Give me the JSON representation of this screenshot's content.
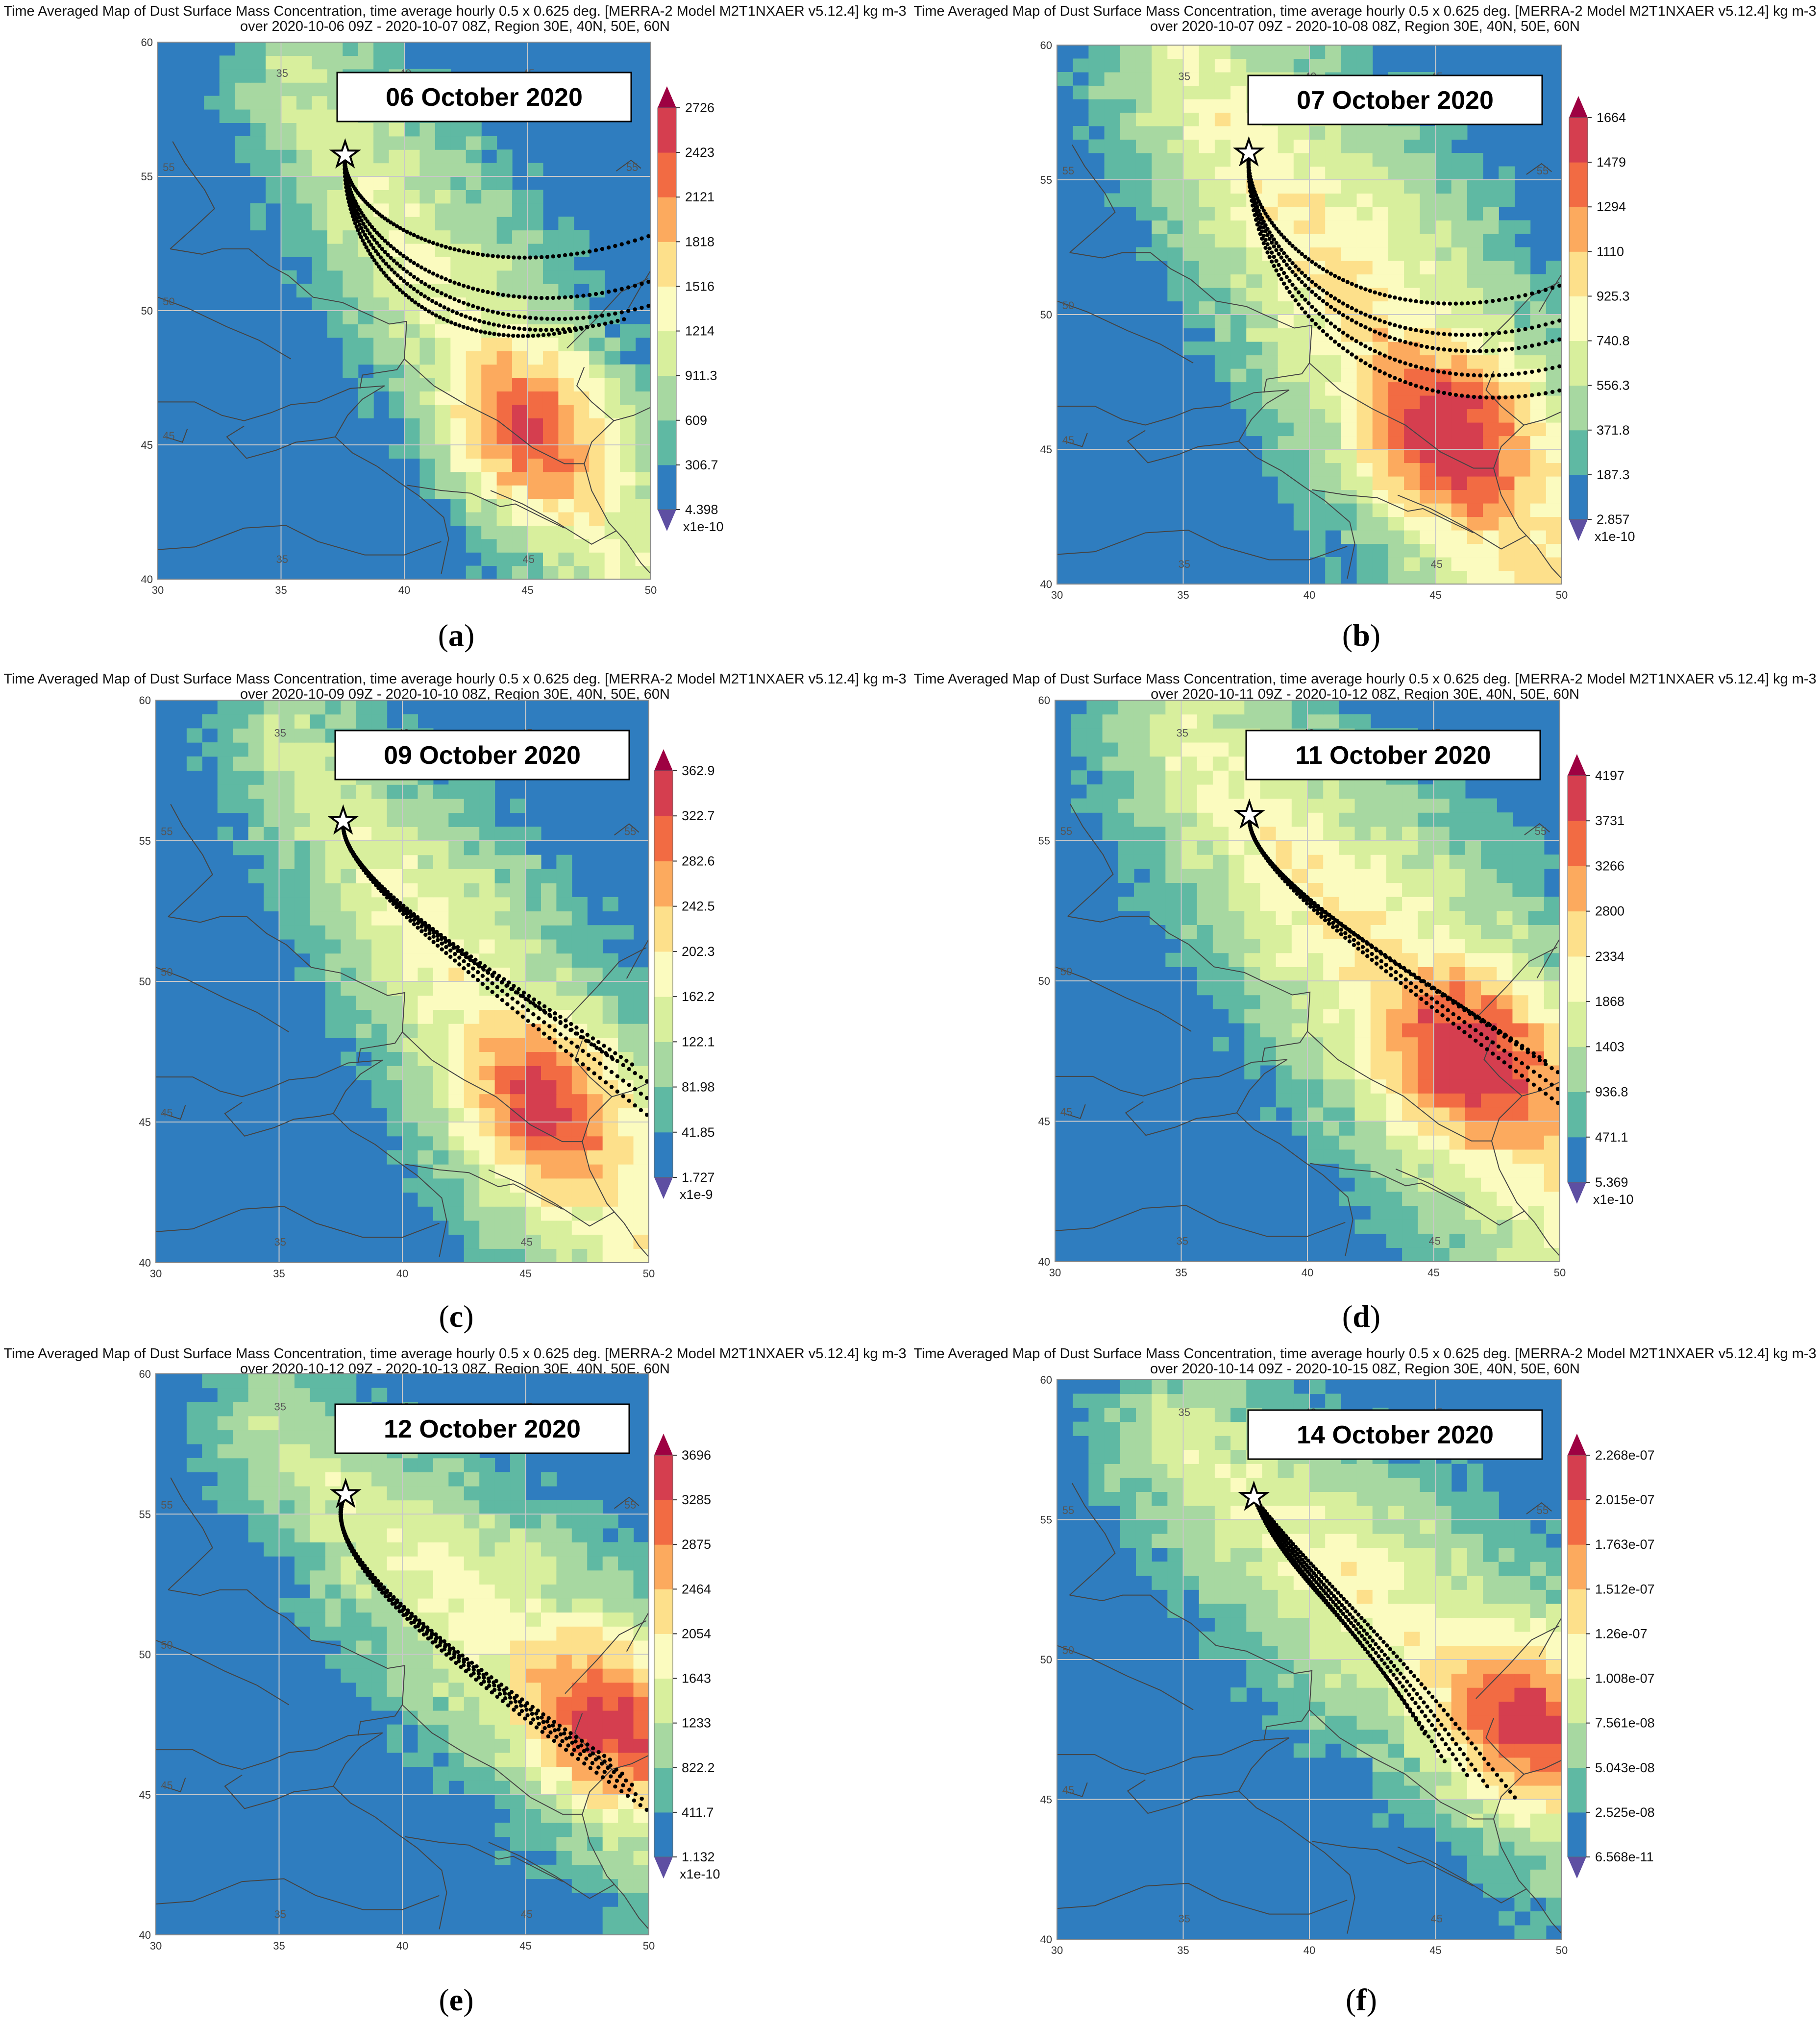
{
  "colors": {
    "c0": "#2f7dbf",
    "c1": "#5fb9a3",
    "c2": "#a7d8a1",
    "c3": "#d8ef9d",
    "c4": "#fbfbbf",
    "c5": "#fde08b",
    "c6": "#fcaa5e",
    "c7": "#f26b43",
    "c8": "#d53e4f",
    "cTopArrow": "#9e0142",
    "cBotArrow": "#5e4fa2",
    "grid": "#c8c8c8",
    "coast": "#444444",
    "traj": "#000000"
  },
  "axes": {
    "lon_range": [
      30,
      50
    ],
    "lat_range": [
      40,
      60
    ],
    "lon_ticks": [
      "30",
      "35",
      "40",
      "45",
      "50"
    ],
    "lat_ticks": [
      "40",
      "45",
      "50",
      "55",
      "60"
    ]
  },
  "panels": [
    {
      "title": "Time Averaged Map of Dust Surface Mass Concentration, time average hourly 0.5 x 0.625 deg. [MERRA-2 Model M2T1NXAER v5.12.4] kg m-3\nover 2020-10-06 09Z - 2020-10-07 08Z, Region 30E, 40N, 50E, 60N",
      "date_label": "06 October 2020",
      "caption": "a",
      "colorbar_labels": [
        "2726",
        "2423",
        "2121",
        "1818",
        "1516",
        "1214",
        "911.3",
        "609",
        "306.7",
        "4.398"
      ],
      "colorbar_unit": "x1e-10",
      "star": [
        37.6,
        55.8
      ],
      "hotspot": [
        45.2,
        45.6
      ],
      "trajectory_ends": [
        [
          47.5,
          49.4
        ],
        [
          49.0,
          49.7
        ],
        [
          50.0,
          50.2
        ],
        [
          50.0,
          51.1
        ],
        [
          50.0,
          52.8
        ]
      ]
    },
    {
      "title": "Time Averaged Map of Dust Surface Mass Concentration, time average hourly 0.5 x 0.625 deg. [MERRA-2 Model M2T1NXAER v5.12.4] kg m-3\nover 2020-10-07 09Z - 2020-10-08 08Z, Region 30E, 40N, 50E, 60N",
      "date_label": "07 October 2020",
      "caption": "b",
      "colorbar_labels": [
        "1664",
        "1479",
        "1294",
        "1110",
        "925.3",
        "740.8",
        "556.3",
        "371.8",
        "187.3",
        "2.857"
      ],
      "colorbar_unit": "x1e-10",
      "star": [
        37.6,
        56.0
      ],
      "hotspot": [
        45.6,
        45.5
      ],
      "trajectory_ends": [
        [
          50.0,
          47.2
        ],
        [
          50.0,
          48.1
        ],
        [
          50.0,
          49.1
        ],
        [
          50.0,
          49.8
        ],
        [
          50.0,
          51.1
        ]
      ]
    },
    {
      "title": "Time Averaged Map of Dust Surface Mass Concentration, time average hourly 0.5 x 0.625 deg. [MERRA-2 Model M2T1NXAER v5.12.4] kg m-3\nover 2020-10-09 09Z - 2020-10-10 08Z, Region 30E, 40N, 50E, 60N",
      "date_label": "09 October 2020",
      "caption": "c",
      "colorbar_labels": [
        "362.9",
        "322.7",
        "282.6",
        "242.5",
        "202.3",
        "162.2",
        "122.1",
        "81.98",
        "41.85",
        "1.727"
      ],
      "colorbar_unit": "x1e-9",
      "star": [
        37.6,
        55.7
      ],
      "hotspot": [
        45.8,
        45.6
      ],
      "trajectory_ends": [
        [
          50.0,
          45.2
        ],
        [
          50.0,
          45.8
        ],
        [
          50.0,
          46.4
        ],
        [
          49.4,
          47.0
        ],
        [
          48.6,
          47.2
        ]
      ]
    },
    {
      "title": "Time Averaged Map of Dust Surface Mass Concentration, time average hourly 0.5 x 0.625 deg. [MERRA-2 Model M2T1NXAER v5.12.4] kg m-3\nover 2020-10-11 09Z - 2020-10-12 08Z, Region 30E, 40N, 50E, 60N",
      "date_label": "11 October 2020",
      "caption": "d",
      "colorbar_labels": [
        "4197",
        "3731",
        "3266",
        "2800",
        "2334",
        "1868",
        "1403",
        "936.8",
        "471.1",
        "5.369"
      ],
      "colorbar_unit": "x1e-10",
      "star": [
        37.7,
        55.9
      ],
      "hotspot": [
        46.5,
        47.2
      ],
      "trajectory_ends": [
        [
          50.0,
          45.6
        ],
        [
          50.0,
          46.1
        ],
        [
          50.0,
          46.7
        ],
        [
          49.5,
          47.1
        ],
        [
          48.8,
          47.5
        ]
      ]
    },
    {
      "title": "Time Averaged Map of Dust Surface Mass Concentration, time average hourly 0.5 x 0.625 deg. [MERRA-2 Model M2T1NXAER v5.12.4] kg m-3\nover 2020-10-12 09Z - 2020-10-13 08Z, Region 30E, 40N, 50E, 60N",
      "date_label": "12 October 2020",
      "caption": "e",
      "colorbar_labels": [
        "3696",
        "3285",
        "2875",
        "2464",
        "2054",
        "1643",
        "1233",
        "822.2",
        "411.7",
        "1.132"
      ],
      "colorbar_unit": "x1e-10",
      "star": [
        37.7,
        55.7
      ],
      "hotspot": [
        48.4,
        47.6
      ],
      "trajectory_ends": [
        [
          50.0,
          44.4
        ],
        [
          49.8,
          44.8
        ],
        [
          49.4,
          45.3
        ],
        [
          49.0,
          45.7
        ],
        [
          48.5,
          46.2
        ]
      ]
    },
    {
      "title": "Time Averaged Map of Dust Surface Mass Concentration, time average hourly 0.5 x 0.625 deg. [MERRA-2 Model M2T1NXAER v5.12.4] kg m-3\nover 2020-10-14 09Z - 2020-10-15 08Z, Region 30E, 40N, 50E, 60N",
      "date_label": "14 October 2020",
      "caption": "f",
      "colorbar_labels": [
        "2.268e-07",
        "2.015e-07",
        "1.763e-07",
        "1.512e-07",
        "1.26e-07",
        "1.008e-07",
        "7.561e-08",
        "5.043e-08",
        "2.525e-08",
        "6.568e-11"
      ],
      "colorbar_unit": "",
      "star": [
        37.8,
        55.8
      ],
      "hotspot": [
        48.6,
        47.8
      ],
      "trajectory_ends": [
        [
          44.6,
          47.3
        ],
        [
          45.4,
          46.3
        ],
        [
          46.3,
          45.8
        ],
        [
          47.1,
          45.4
        ],
        [
          48.2,
          45.0
        ]
      ]
    }
  ]
}
